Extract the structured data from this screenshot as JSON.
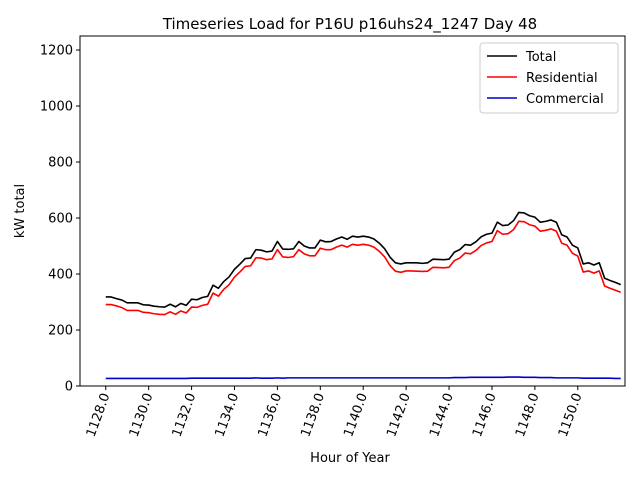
{
  "chart_data": {
    "type": "line",
    "title": "Timeseries Load for P16U p16uhs24_1247  Day 48",
    "xlabel": "Hour of Year",
    "ylabel": "kW total",
    "xlim": [
      1126.8,
      1152.2
    ],
    "ylim": [
      0,
      1250
    ],
    "xticks": [
      1128,
      1130,
      1132,
      1134,
      1136,
      1138,
      1140,
      1142,
      1144,
      1146,
      1148,
      1150
    ],
    "xtick_labels": [
      "1128.0",
      "1130.0",
      "1132.0",
      "1134.0",
      "1136.0",
      "1138.0",
      "1140.0",
      "1142.0",
      "1144.0",
      "1146.0",
      "1148.0",
      "1150.0"
    ],
    "yticks": [
      0,
      200,
      400,
      600,
      800,
      1000,
      1200
    ],
    "ytick_labels": [
      "0",
      "200",
      "400",
      "600",
      "800",
      "1000",
      "1200"
    ],
    "grid": false,
    "legend_position": "top-right",
    "x_start": 1128.0,
    "x_step": 0.25,
    "series": [
      {
        "name": "Total",
        "color": "#000000",
        "values": [
          318,
          318,
          312,
          307,
          297,
          297,
          297,
          290,
          289,
          285,
          283,
          282,
          292,
          283,
          295,
          288,
          310,
          308,
          316,
          320,
          360,
          349,
          373,
          390,
          417,
          435,
          455,
          457,
          487,
          485,
          479,
          482,
          516,
          489,
          488,
          490,
          516,
          500,
          493,
          493,
          521,
          515,
          516,
          525,
          532,
          524,
          535,
          532,
          535,
          532,
          525,
          510,
          490,
          460,
          440,
          436,
          440,
          440,
          440,
          438,
          440,
          453,
          452,
          451,
          453,
          478,
          487,
          505,
          503,
          515,
          533,
          542,
          546,
          585,
          573,
          575,
          590,
          620,
          618,
          608,
          603,
          585,
          588,
          593,
          585,
          540,
          532,
          503,
          493,
          436,
          440,
          432,
          440,
          385,
          377,
          370,
          362
        ]
      },
      {
        "name": "Residential",
        "color": "#ff0000",
        "values": [
          291,
          291,
          286,
          280,
          270,
          270,
          270,
          263,
          262,
          258,
          256,
          255,
          265,
          256,
          268,
          261,
          282,
          281,
          288,
          292,
          332,
          321,
          345,
          362,
          389,
          407,
          427,
          429,
          458,
          457,
          451,
          454,
          487,
          461,
          459,
          462,
          487,
          472,
          465,
          465,
          492,
          487,
          487,
          496,
          503,
          496,
          506,
          503,
          506,
          503,
          496,
          481,
          461,
          430,
          410,
          406,
          411,
          411,
          410,
          409,
          410,
          424,
          423,
          422,
          424,
          448,
          457,
          475,
          472,
          484,
          502,
          511,
          516,
          555,
          542,
          544,
          558,
          588,
          587,
          576,
          571,
          553,
          556,
          561,
          553,
          510,
          503,
          474,
          464,
          407,
          411,
          403,
          411,
          357,
          349,
          342,
          335
        ]
      },
      {
        "name": "Commercial",
        "color": "#0000cc",
        "values": [
          27,
          27,
          27,
          27,
          27,
          27,
          27,
          27,
          27,
          27,
          27,
          27,
          27,
          27,
          27,
          27,
          28,
          28,
          28,
          28,
          28,
          28,
          28,
          28,
          28,
          28,
          28,
          28,
          29,
          28,
          28,
          28,
          29,
          28,
          29,
          29,
          29,
          29,
          29,
          29,
          29,
          29,
          29,
          29,
          29,
          29,
          29,
          29,
          29,
          29,
          29,
          29,
          29,
          29,
          29,
          29,
          29,
          29,
          29,
          29,
          29,
          29,
          29,
          29,
          29,
          30,
          30,
          30,
          31,
          31,
          31,
          31,
          31,
          31,
          31,
          32,
          32,
          32,
          31,
          31,
          31,
          30,
          30,
          30,
          29,
          29,
          29,
          29,
          29,
          28,
          28,
          28,
          28,
          28,
          28,
          27,
          27
        ]
      }
    ]
  }
}
